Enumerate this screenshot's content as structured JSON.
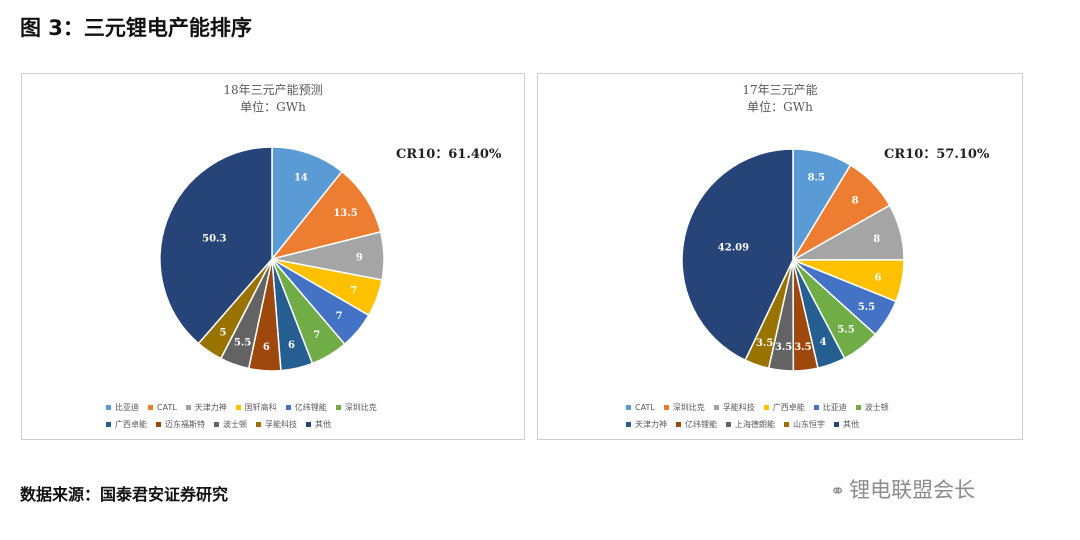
{
  "figure_title": "图 3：三元锂电产能排序",
  "source_note": "数据来源：国泰君安证券研究",
  "watermark": {
    "icon": "wechat-icon",
    "text": "锂电联盟会长"
  },
  "chart_data": [
    {
      "type": "pie",
      "title": "18年三元产能预测",
      "subtitle": "单位：GWh",
      "annotation": "CR10：61.40%",
      "legend_position": "bottom",
      "categories": [
        "比亚迪",
        "CATL",
        "天津力神",
        "国轩高科",
        "亿纬锂能",
        "深圳比克",
        "广西卓能",
        "迈东福斯特",
        "波士顿",
        "孚能科技",
        "其他"
      ],
      "values": [
        14,
        13.5,
        9,
        7,
        7,
        7,
        6,
        6,
        5.5,
        5,
        50.3
      ],
      "labels": [
        "14",
        "13.5",
        "9",
        "7",
        "7",
        "7",
        "6",
        "6",
        "5.5",
        "5",
        "50.3"
      ],
      "colors": [
        "#5b9bd5",
        "#ed7d31",
        "#a5a5a5",
        "#ffc000",
        "#4472c4",
        "#70ad47",
        "#255e91",
        "#9e480e",
        "#636363",
        "#997300",
        "#264478"
      ]
    },
    {
      "type": "pie",
      "title": "17年三元产能",
      "subtitle": "单位：GWh",
      "annotation": "CR10：57.10%",
      "legend_position": "bottom",
      "categories": [
        "CATL",
        "深圳比克",
        "孚能科技",
        "广西卓能",
        "比亚迪",
        "波士顿",
        "天津力神",
        "亿纬锂能",
        "上海德朗能",
        "山东恒宇",
        "其他"
      ],
      "values": [
        8.5,
        8,
        8,
        6,
        5.5,
        5.5,
        4,
        3.5,
        3.5,
        3.5,
        42.09
      ],
      "labels": [
        "8.5",
        "8",
        "8",
        "6",
        "5.5",
        "5.5",
        "4",
        "3.5",
        "3.5",
        "3.5",
        "42.09"
      ],
      "colors": [
        "#5b9bd5",
        "#ed7d31",
        "#a5a5a5",
        "#ffc000",
        "#4472c4",
        "#70ad47",
        "#255e91",
        "#9e480e",
        "#636363",
        "#997300",
        "#264478"
      ]
    }
  ]
}
